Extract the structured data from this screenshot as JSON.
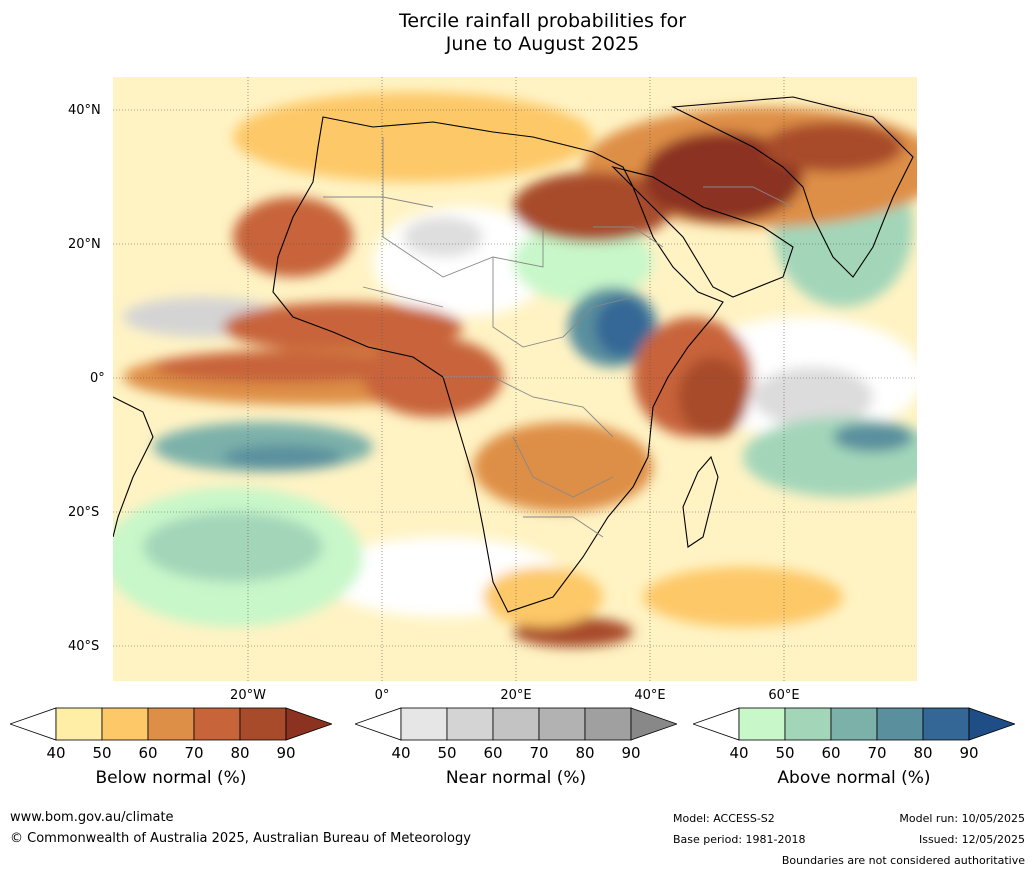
{
  "title": {
    "line1": "Tercile rainfall probabilities for",
    "line2": "June to August 2025"
  },
  "map": {
    "lat_labels": [
      "40°N",
      "20°N",
      "0°",
      "20°S",
      "40°S"
    ],
    "lon_labels": [
      "20°W",
      "0°",
      "20°E",
      "40°E",
      "60°E"
    ]
  },
  "colorbars": [
    {
      "name": "Below normal (%)",
      "ticks": [
        "40",
        "50",
        "60",
        "70",
        "80",
        "90"
      ],
      "colors": [
        "#ffffff",
        "#ffeea6",
        "#fdc867",
        "#de8f47",
        "#c8643a",
        "#a84b2b",
        "#8b3220"
      ]
    },
    {
      "name": "Near normal (%)",
      "ticks": [
        "40",
        "50",
        "60",
        "70",
        "80",
        "90"
      ],
      "colors": [
        "#ffffff",
        "#e6e6e6",
        "#d4d4d4",
        "#c3c3c3",
        "#b2b2b2",
        "#a0a0a0",
        "#888888"
      ]
    },
    {
      "name": "Above normal (%)",
      "ticks": [
        "40",
        "50",
        "60",
        "70",
        "80",
        "90"
      ],
      "colors": [
        "#ffffff",
        "#c8f7c9",
        "#a3d6b9",
        "#7cb1aa",
        "#5a909e",
        "#356796",
        "#1f4e87"
      ]
    }
  ],
  "footer": {
    "website": "www.bom.gov.au/climate",
    "copyright": "© Commonwealth of Australia 2025, Australian Bureau of Meteorology",
    "model": "Model: ACCESS-S2",
    "base_period": "Base period: 1981-2018",
    "model_run": "Model run: 10/05/2025",
    "issued": "Issued: 12/05/2025",
    "disclaimer": "Boundaries are not considered authoritative"
  }
}
